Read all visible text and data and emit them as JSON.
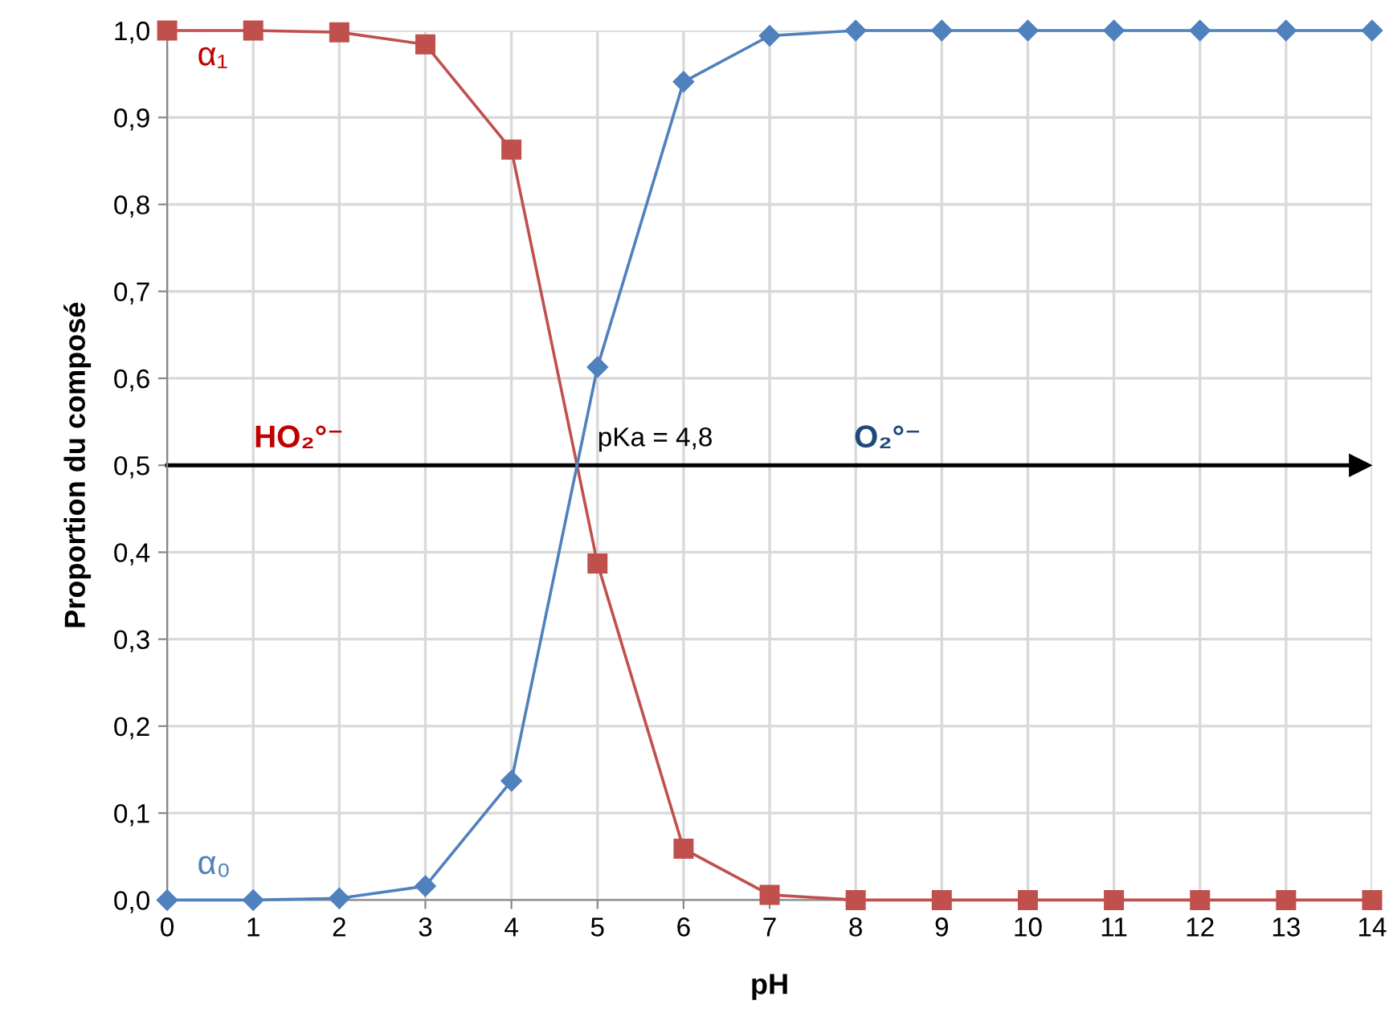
{
  "chart_data": {
    "type": "line",
    "xlabel": "pH",
    "ylabel": "Proportion du composé",
    "x": [
      0,
      1,
      2,
      3,
      4,
      5,
      6,
      7,
      8,
      9,
      10,
      11,
      12,
      13,
      14
    ],
    "series": [
      {
        "name": "α₁",
        "color": "#c0504d",
        "marker": "square",
        "values": [
          1.0,
          1.0,
          0.998,
          0.984,
          0.863,
          0.387,
          0.059,
          0.006,
          0.0,
          0.0,
          0.0,
          0.0,
          0.0,
          0.0,
          0.0
        ]
      },
      {
        "name": "α₀",
        "color": "#4f81bd",
        "marker": "diamond",
        "values": [
          0.0,
          0.0,
          0.002,
          0.016,
          0.137,
          0.613,
          0.941,
          0.994,
          1.0,
          1.0,
          1.0,
          1.0,
          1.0,
          1.0,
          1.0
        ]
      }
    ],
    "xlim": [
      0,
      14
    ],
    "xticks": [
      0,
      1,
      2,
      3,
      4,
      5,
      6,
      7,
      8,
      9,
      10,
      11,
      12,
      13,
      14
    ],
    "ylim": [
      0,
      1
    ],
    "yticks": [
      {
        "value": 0,
        "label": "0,0"
      },
      {
        "value": 0.1,
        "label": "0,1"
      },
      {
        "value": 0.2,
        "label": "0,2"
      },
      {
        "value": 0.3,
        "label": "0,3"
      },
      {
        "value": 0.4,
        "label": "0,4"
      },
      {
        "value": 0.5,
        "label": "0,5"
      },
      {
        "value": 0.6,
        "label": "0,6"
      },
      {
        "value": 0.7,
        "label": "0,7"
      },
      {
        "value": 0.8,
        "label": "0,8"
      },
      {
        "value": 0.9,
        "label": "0,9"
      },
      {
        "value": 1,
        "label": "1,0"
      }
    ],
    "ref_lines": [
      {
        "axis": "y",
        "value": 0.5,
        "color": "#000000"
      }
    ],
    "annotations": [
      "HO₂°⁻",
      "O₂°⁻",
      {
        "text": "pKa = 4,8",
        "x": 4.8,
        "y": 0.5
      }
    ],
    "grid": true,
    "legend": false,
    "line_style": "solid"
  }
}
